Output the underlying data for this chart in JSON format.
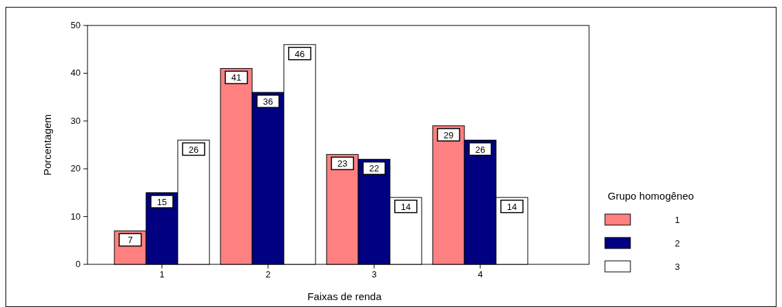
{
  "chart_data": {
    "type": "bar",
    "xlabel": "Faixas de renda",
    "ylabel": "Porcentagem",
    "legend_title": "Grupo homogêneo",
    "categories": [
      "1",
      "2",
      "3",
      "4"
    ],
    "series": [
      {
        "name": "1",
        "color": "#ff8080",
        "values": [
          7,
          41,
          23,
          29
        ]
      },
      {
        "name": "2",
        "color": "#000080",
        "values": [
          15,
          36,
          22,
          26
        ]
      },
      {
        "name": "3",
        "color": "#ffffff",
        "values": [
          26,
          46,
          14,
          14
        ]
      }
    ],
    "ylim": [
      0,
      50
    ],
    "yticks": [
      0,
      10,
      20,
      30,
      40,
      50
    ],
    "grid": false,
    "legend": "right",
    "data_labels": true
  }
}
